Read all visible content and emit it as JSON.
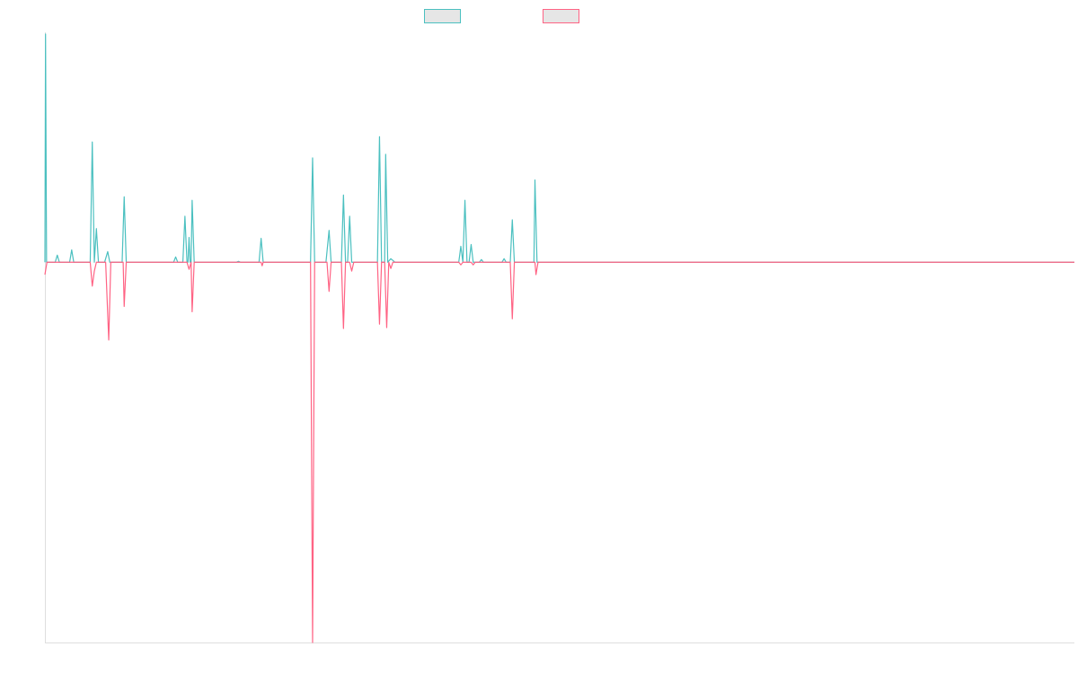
{
  "chart_data": {
    "type": "line",
    "title": "",
    "xlabel": "",
    "ylabel": "",
    "x_range": [
      0,
      1000
    ],
    "y_range": [
      -430,
      260
    ],
    "grid": false,
    "legend_position": "top-center",
    "series": [
      {
        "color": "#4bc0c0",
        "points": [
          [
            0,
            0
          ],
          [
            0.6,
            258
          ],
          [
            1.6,
            0
          ],
          [
            10,
            0
          ],
          [
            12,
            8
          ],
          [
            14,
            0
          ],
          [
            24,
            0
          ],
          [
            26,
            14
          ],
          [
            28,
            0
          ],
          [
            44,
            0
          ],
          [
            46,
            136
          ],
          [
            48,
            0
          ],
          [
            50,
            38
          ],
          [
            52,
            0
          ],
          [
            58,
            0
          ],
          [
            61,
            12
          ],
          [
            63,
            0
          ],
          [
            75,
            0
          ],
          [
            77,
            74
          ],
          [
            79,
            0
          ],
          [
            125,
            0
          ],
          [
            127,
            6
          ],
          [
            129,
            0
          ],
          [
            134,
            0
          ],
          [
            136,
            52
          ],
          [
            138,
            0
          ],
          [
            139,
            0
          ],
          [
            140,
            28
          ],
          [
            141,
            0
          ],
          [
            142,
            0
          ],
          [
            143,
            70
          ],
          [
            145,
            0
          ],
          [
            186,
            0
          ],
          [
            188,
            1
          ],
          [
            190,
            0
          ],
          [
            208,
            0
          ],
          [
            210,
            27
          ],
          [
            212,
            0
          ],
          [
            258,
            0
          ],
          [
            260,
            118
          ],
          [
            262,
            0
          ],
          [
            273,
            0
          ],
          [
            276,
            36
          ],
          [
            278,
            0
          ],
          [
            288,
            0
          ],
          [
            290,
            76
          ],
          [
            292,
            0
          ],
          [
            294,
            0
          ],
          [
            296,
            52
          ],
          [
            298,
            0
          ],
          [
            323,
            0
          ],
          [
            325,
            142
          ],
          [
            327,
            0
          ],
          [
            330,
            0
          ],
          [
            331,
            122
          ],
          [
            333,
            0
          ],
          [
            336,
            4
          ],
          [
            340,
            0
          ],
          [
            402,
            0
          ],
          [
            404,
            18
          ],
          [
            406,
            0
          ],
          [
            408,
            70
          ],
          [
            410,
            0
          ],
          [
            412,
            0
          ],
          [
            414,
            20
          ],
          [
            416,
            0
          ],
          [
            422,
            0
          ],
          [
            424,
            3
          ],
          [
            426,
            0
          ],
          [
            444,
            0
          ],
          [
            446,
            4
          ],
          [
            448,
            0
          ],
          [
            452,
            0
          ],
          [
            454,
            48
          ],
          [
            456,
            0
          ],
          [
            475,
            0
          ],
          [
            476,
            93
          ],
          [
            478,
            0
          ],
          [
            1000,
            0
          ]
        ]
      },
      {
        "color": "#ff6384",
        "points": [
          [
            0,
            -14
          ],
          [
            2,
            0
          ],
          [
            44,
            0
          ],
          [
            46,
            -27
          ],
          [
            48,
            -10
          ],
          [
            50,
            0
          ],
          [
            59,
            0
          ],
          [
            62,
            -88
          ],
          [
            64,
            0
          ],
          [
            76,
            0
          ],
          [
            77,
            -50
          ],
          [
            79,
            0
          ],
          [
            138,
            0
          ],
          [
            140,
            -8
          ],
          [
            142,
            0
          ],
          [
            143,
            -56
          ],
          [
            145,
            0
          ],
          [
            210,
            0
          ],
          [
            211,
            -4
          ],
          [
            212,
            0
          ],
          [
            258,
            0
          ],
          [
            260,
            -430
          ],
          [
            262,
            0
          ],
          [
            274,
            0
          ],
          [
            276,
            -33
          ],
          [
            278,
            0
          ],
          [
            288,
            0
          ],
          [
            290,
            -75
          ],
          [
            292,
            0
          ],
          [
            296,
            0
          ],
          [
            298,
            -10
          ],
          [
            300,
            0
          ],
          [
            323,
            0
          ],
          [
            325,
            -70
          ],
          [
            327,
            0
          ],
          [
            330,
            0
          ],
          [
            332,
            -74
          ],
          [
            334,
            0
          ],
          [
            336,
            -7
          ],
          [
            338,
            0
          ],
          [
            402,
            0
          ],
          [
            404,
            -3
          ],
          [
            406,
            0
          ],
          [
            414,
            0
          ],
          [
            416,
            -3
          ],
          [
            418,
            0
          ],
          [
            452,
            0
          ],
          [
            454,
            -64
          ],
          [
            456,
            0
          ],
          [
            476,
            0
          ],
          [
            477,
            -14
          ],
          [
            479,
            0
          ],
          [
            1000,
            0
          ]
        ]
      }
    ]
  }
}
